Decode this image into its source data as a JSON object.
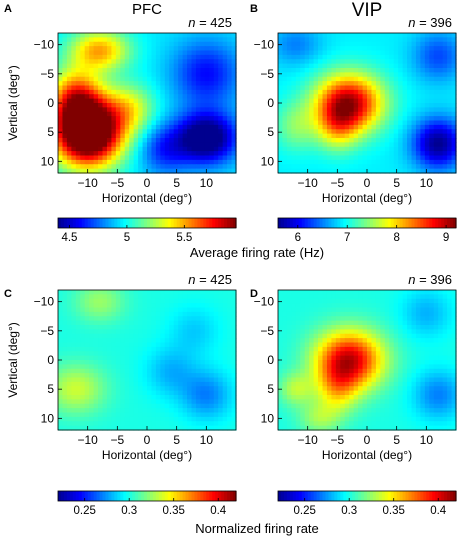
{
  "colors": {
    "jet": [
      "#00008f",
      "#0000ff",
      "#0080ff",
      "#00ffff",
      "#80ff80",
      "#ffff00",
      "#ff8000",
      "#ff0000",
      "#800000"
    ]
  },
  "chart_data": [
    {
      "type": "heatmap",
      "panel_label": "A",
      "title": "PFC",
      "n_label": "n = 425",
      "xlabel": "Horizontal (deg°)",
      "ylabel": "Vertical (deg°)",
      "xlim": [
        -15,
        15
      ],
      "ylim": [
        -12,
        12
      ],
      "y_inverted": true,
      "xticks": [
        -10,
        -5,
        0,
        5,
        10
      ],
      "yticks": [
        -10,
        -5,
        0,
        5,
        10
      ],
      "xticklabels": [
        "−10",
        "−5",
        "0",
        "5",
        "10"
      ],
      "yticklabels": [
        "−10",
        "−5",
        "0",
        "5",
        "10"
      ],
      "colormap": "jet",
      "clim": [
        4.4,
        5.95
      ],
      "blobs": [
        {
          "x": -10,
          "y": 5,
          "sx": 4,
          "sy": 4,
          "value": 1.45
        },
        {
          "x": -8,
          "y": -9,
          "sx": 3.5,
          "sy": 2.5,
          "value": 0.55
        },
        {
          "x": -12,
          "y": -1,
          "sx": 3,
          "sy": 3.5,
          "value": 0.6
        },
        {
          "x": -3,
          "y": 1,
          "sx": 3,
          "sy": 3,
          "value": 0.35
        },
        {
          "x": 10,
          "y": 6,
          "sx": 3.5,
          "sy": 3,
          "value": -0.7
        },
        {
          "x": 10,
          "y": -5,
          "sx": 4,
          "sy": 4,
          "value": -0.35
        },
        {
          "x": 3,
          "y": 8,
          "sx": 3,
          "sy": 3,
          "value": -0.3
        }
      ],
      "base": 4.95
    },
    {
      "type": "heatmap",
      "panel_label": "B",
      "title": "VIP",
      "n_label": "n = 396",
      "xlabel": "Horizontal (deg°)",
      "ylabel": "",
      "xlim": [
        -15,
        15
      ],
      "ylim": [
        -12,
        12
      ],
      "y_inverted": true,
      "xticks": [
        -10,
        -5,
        0,
        5,
        10
      ],
      "yticks": [
        -10,
        -5,
        0,
        5,
        10
      ],
      "xticklabels": [
        "−10",
        "−5",
        "0",
        "5",
        "10"
      ],
      "yticklabels": [
        "−10",
        "−5",
        "0",
        "5",
        "10"
      ],
      "colormap": "jet",
      "clim": [
        5.6,
        9.2
      ],
      "blobs": [
        {
          "x": -3,
          "y": 0,
          "sx": 4,
          "sy": 3.5,
          "value": 2.1
        },
        {
          "x": -5,
          "y": 4,
          "sx": 2.5,
          "sy": 3,
          "value": 0.8
        },
        {
          "x": -12,
          "y": 4,
          "sx": 2.5,
          "sy": 3,
          "value": 0.5
        },
        {
          "x": 12,
          "y": 7,
          "sx": 3,
          "sy": 3,
          "value": -1.3
        },
        {
          "x": 12,
          "y": -8,
          "sx": 3,
          "sy": 3,
          "value": -0.6
        },
        {
          "x": -12,
          "y": -10,
          "sx": 3,
          "sy": 2.5,
          "value": -0.4
        }
      ],
      "base": 6.9
    },
    {
      "type": "heatmap",
      "panel_label": "C",
      "title": "",
      "n_label": "n = 425",
      "xlabel": "Horizontal (deg°)",
      "ylabel": "Vertical (deg°)",
      "xlim": [
        -15,
        15
      ],
      "ylim": [
        -12,
        12
      ],
      "y_inverted": true,
      "xticks": [
        -10,
        -5,
        0,
        5,
        10
      ],
      "yticks": [
        -10,
        -5,
        0,
        5,
        10
      ],
      "xticklabels": [
        "−10",
        "−5",
        "0",
        "5",
        "10"
      ],
      "yticklabels": [
        "−10",
        "−5",
        "0",
        "5",
        "10"
      ],
      "colormap": "jet",
      "clim": [
        0.22,
        0.42
      ],
      "blobs": [
        {
          "x": -12,
          "y": 5,
          "sx": 3.5,
          "sy": 3,
          "value": 0.035
        },
        {
          "x": -8,
          "y": -10,
          "sx": 3,
          "sy": 2.5,
          "value": 0.025
        },
        {
          "x": 10,
          "y": 6,
          "sx": 3,
          "sy": 3,
          "value": -0.03
        },
        {
          "x": 4,
          "y": 2,
          "sx": 3,
          "sy": 3,
          "value": -0.02
        },
        {
          "x": 8,
          "y": -5,
          "sx": 3,
          "sy": 3,
          "value": -0.015
        }
      ],
      "base": 0.3
    },
    {
      "type": "heatmap",
      "panel_label": "D",
      "title": "",
      "n_label": "n = 396",
      "xlabel": "Horizontal (deg°)",
      "ylabel": "",
      "xlim": [
        -15,
        15
      ],
      "ylim": [
        -12,
        12
      ],
      "y_inverted": true,
      "xticks": [
        -10,
        -5,
        0,
        5,
        10
      ],
      "yticks": [
        -10,
        -5,
        0,
        5,
        10
      ],
      "xticklabels": [
        "−10",
        "−5",
        "0",
        "5",
        "10"
      ],
      "yticklabels": [
        "−10",
        "−5",
        "0",
        "5",
        "10"
      ],
      "colormap": "jet",
      "clim": [
        0.22,
        0.42
      ],
      "blobs": [
        {
          "x": -3,
          "y": 0,
          "sx": 4,
          "sy": 3.5,
          "value": 0.105
        },
        {
          "x": -5,
          "y": 5,
          "sx": 2.5,
          "sy": 3,
          "value": 0.04
        },
        {
          "x": -12,
          "y": 5,
          "sx": 2,
          "sy": 2,
          "value": 0.03
        },
        {
          "x": -8,
          "y": 10,
          "sx": 2.5,
          "sy": 2,
          "value": 0.025
        },
        {
          "x": 12,
          "y": 6,
          "sx": 3,
          "sy": 3,
          "value": -0.03
        },
        {
          "x": 10,
          "y": -8,
          "sx": 3,
          "sy": 3,
          "value": -0.02
        }
      ],
      "base": 0.3
    }
  ],
  "colorbars": [
    {
      "clim": [
        4.4,
        5.95
      ],
      "ticks": [
        4.5,
        5,
        5.5
      ],
      "ticklabels": [
        "4.5",
        "5",
        "5.5"
      ]
    },
    {
      "clim": [
        5.6,
        9.2
      ],
      "ticks": [
        6,
        7,
        8,
        9
      ],
      "ticklabels": [
        "6",
        "7",
        "8",
        "9"
      ]
    },
    {
      "clim": [
        0.22,
        0.42
      ],
      "ticks": [
        0.25,
        0.3,
        0.35,
        0.4
      ],
      "ticklabels": [
        "0.25",
        "0.3",
        "0.35",
        "0.4"
      ]
    },
    {
      "clim": [
        0.22,
        0.42
      ],
      "ticks": [
        0.25,
        0.3,
        0.35,
        0.4
      ],
      "ticklabels": [
        "0.25",
        "0.3",
        "0.35",
        "0.4"
      ]
    }
  ],
  "colorbar_titles": [
    "Average firing rate (Hz)",
    "Normalized firing rate"
  ]
}
